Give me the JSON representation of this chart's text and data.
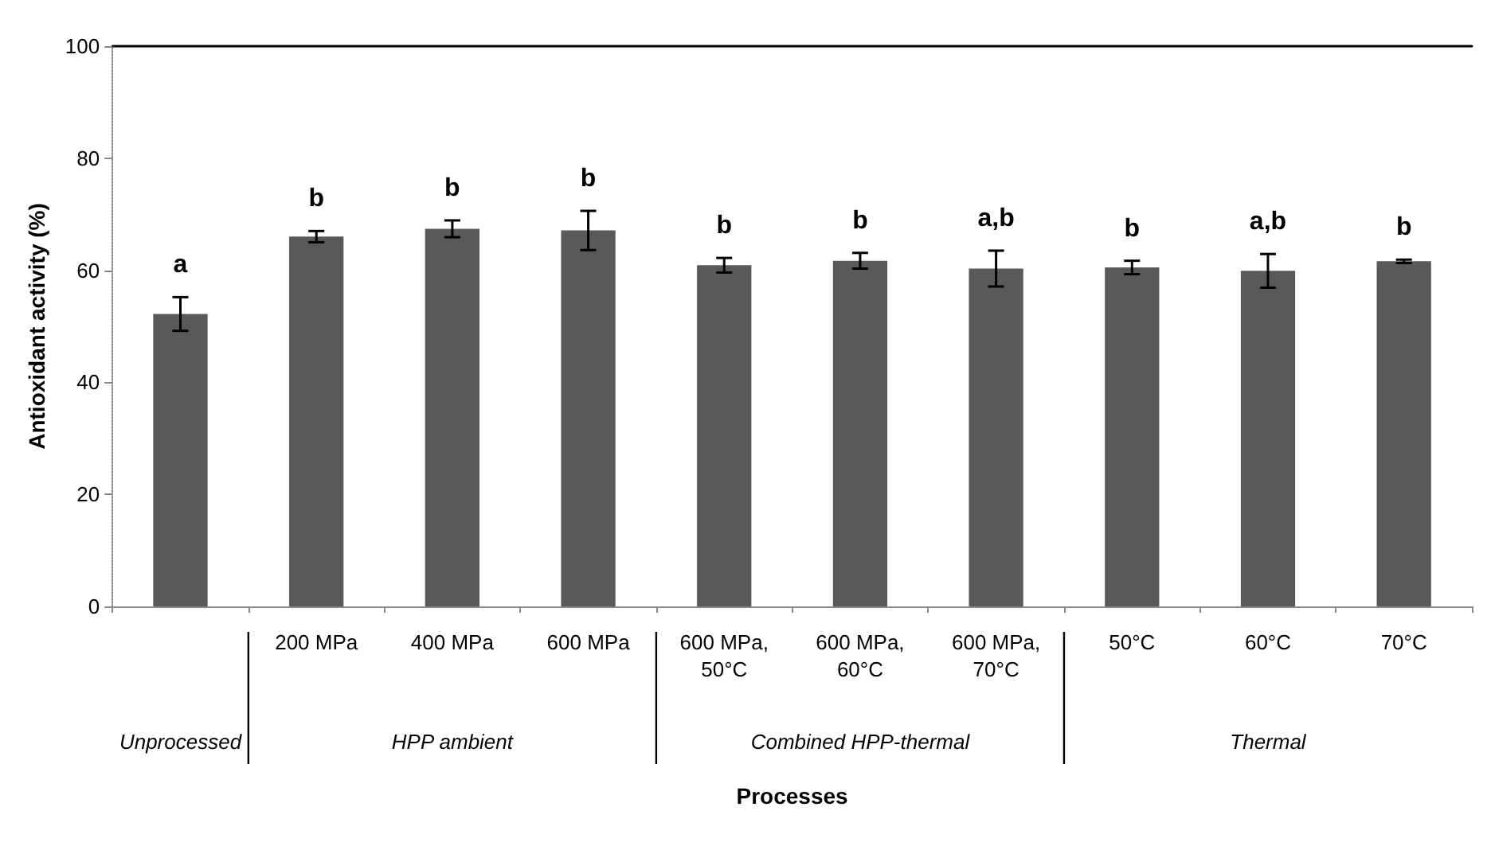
{
  "chart_data": {
    "type": "bar",
    "ylabel": "Antioxidant activity (%)",
    "xlabel": "Processes",
    "categories": [
      null,
      "200 MPa",
      "400 MPa",
      "600 MPa",
      "600 MPa,\n50°C",
      "600 MPa,\n60°C",
      "600 MPa,\n70°C",
      "50°C",
      "60°C",
      "70°C"
    ],
    "values": [
      52.2,
      66.0,
      67.4,
      67.1,
      60.9,
      61.7,
      60.3,
      60.5,
      59.9,
      61.6
    ],
    "errors": [
      3,
      1,
      1.5,
      3.5,
      1.3,
      1.4,
      3.2,
      1.2,
      3,
      0.3
    ],
    "value_labels": [
      "a",
      "b",
      "b",
      "b",
      "b",
      "b",
      "a,b",
      "b",
      "a,b",
      "b"
    ],
    "color": "#595959",
    "ylim": [
      0,
      100
    ],
    "yticks": [
      0,
      20,
      40,
      60,
      80,
      100
    ],
    "grid": false,
    "annotations": [
      "Unprocessed",
      "HPP ambient",
      "Combined HPP-thermal",
      "Thermal"
    ]
  }
}
